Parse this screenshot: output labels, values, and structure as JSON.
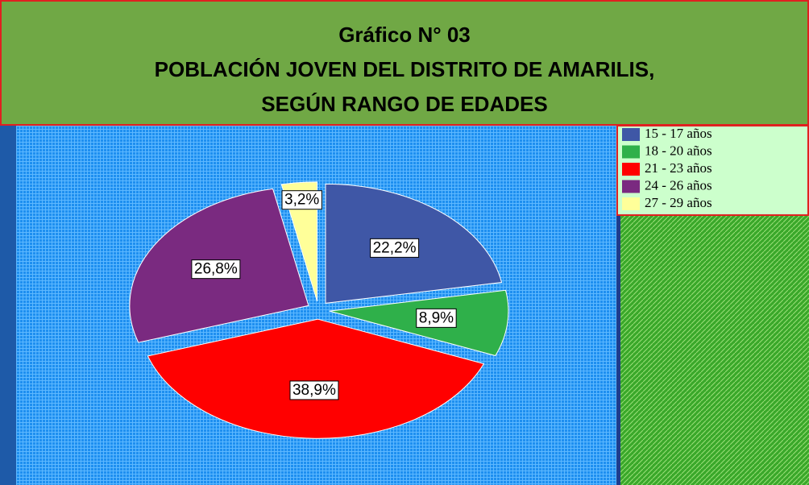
{
  "chart_data": {
    "type": "pie",
    "title": [
      "Gráfico N° 03",
      "POBLACIÓN JOVEN DEL DISTRITO DE AMARILIS,",
      "SEGÚN RANGO DE EDADES"
    ],
    "categories": [
      "15 - 17 años",
      "18 - 20 años",
      "21 - 23 años",
      "24 - 26 años",
      "27 - 29 años"
    ],
    "values": [
      22.2,
      8.9,
      38.9,
      26.8,
      3.2
    ],
    "value_labels": [
      "22,2%",
      "8,9%",
      "38,9%",
      "26,8%",
      "3,2%"
    ],
    "colors": [
      "#3f57a6",
      "#2fb04a",
      "#ff0000",
      "#7a2a80",
      "#ffff99"
    ],
    "legend": "top-right"
  }
}
